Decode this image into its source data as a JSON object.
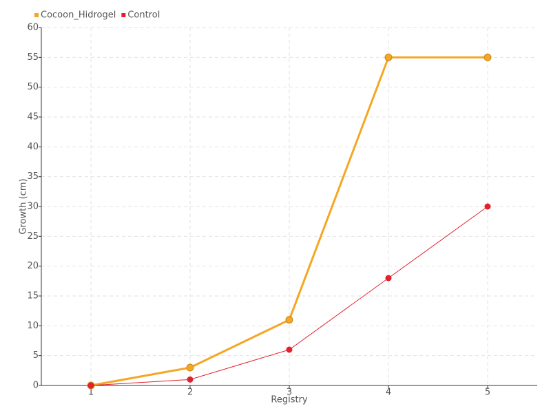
{
  "chart_data": {
    "type": "line",
    "x_label": "Registry",
    "y_label": "Growth (cm)",
    "categories": [
      "1",
      "2",
      "3",
      "4",
      "5"
    ],
    "series": [
      {
        "name": "Cocoon_Hidrogel",
        "color": "#f5a623",
        "values": [
          0,
          3,
          11,
          55,
          55
        ]
      },
      {
        "name": "Control",
        "color": "#e3202c",
        "values": [
          0,
          1,
          6,
          18,
          30
        ]
      }
    ],
    "ylim": [
      0,
      60
    ],
    "yticks": [
      0,
      5,
      10,
      15,
      20,
      25,
      30,
      35,
      40,
      45,
      50,
      55,
      60
    ],
    "grid": true,
    "legend": "top-left"
  }
}
